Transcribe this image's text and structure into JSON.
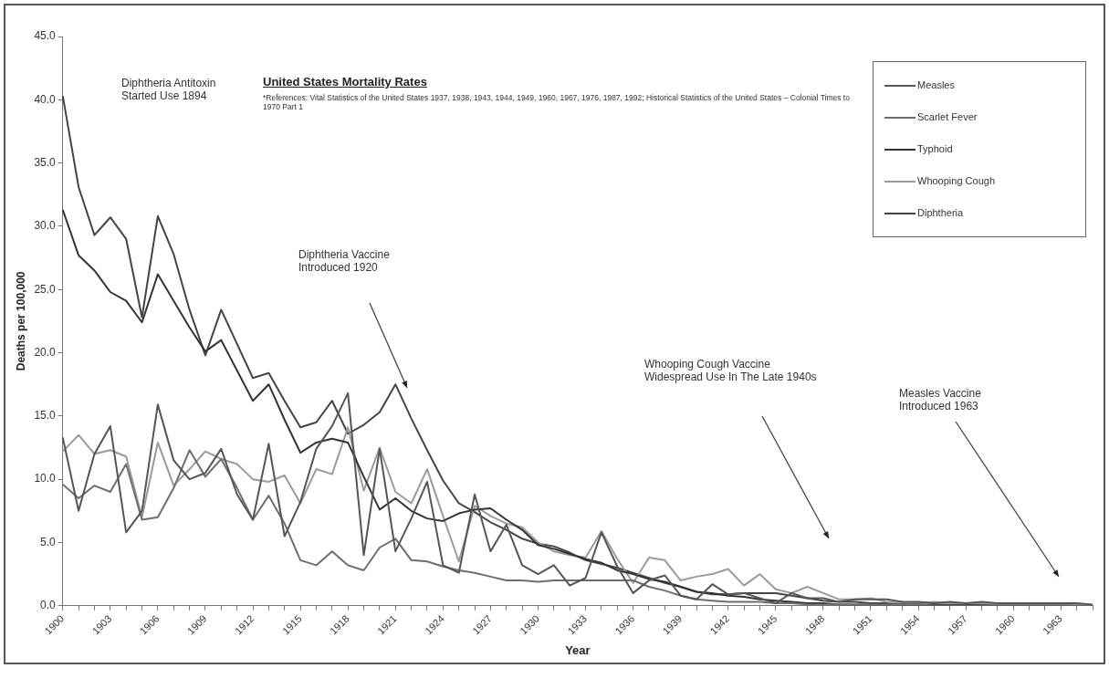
{
  "chart_data": {
    "type": "line",
    "title": "United States Mortality Rates",
    "annotations": [
      "*References: Vital Statistics of the United States 1937, 1938, 1943, 1944, 1949, 1960, 1967, 1976, 1987, 1992; Historical Statistics of the United States – Colonial Times to 1970 Part 1",
      "Diphtheria Antitoxin Started Use 1894",
      "Diphtheria Vaccine Introduced 1920",
      "Whooping Cough Vaccine Widespread Use In The Late 1940s",
      "Measles Vaccine Introduced 1963"
    ],
    "xlabel": "Year",
    "ylabel": "Deaths per 100,000",
    "categories": [
      "1900",
      null,
      null,
      "1903",
      null,
      null,
      "1906",
      null,
      null,
      "1909",
      null,
      null,
      "1912",
      null,
      null,
      "1915",
      null,
      null,
      "1918",
      null,
      null,
      "1921",
      null,
      null,
      "1924",
      null,
      null,
      "1927",
      null,
      null,
      "1930",
      null,
      null,
      "1933",
      null,
      null,
      "1936",
      null,
      null,
      "1939",
      null,
      null,
      "1942",
      null,
      null,
      "1945",
      null,
      null,
      "1948",
      null,
      null,
      "1951",
      null,
      null,
      "1954",
      null,
      null,
      "1957",
      null,
      null,
      "1960",
      null,
      null,
      "1963",
      null,
      null
    ],
    "ylim": [
      0,
      45
    ],
    "yticks": [
      {
        "value": 0,
        "label": "0.0"
      },
      {
        "value": 5,
        "label": "5.0"
      },
      {
        "value": 10,
        "label": "10.0"
      },
      {
        "value": 15,
        "label": "15.0"
      },
      {
        "value": 20,
        "label": "20.0"
      },
      {
        "value": 25,
        "label": "25.0"
      },
      {
        "value": 30,
        "label": "30.0"
      },
      {
        "value": 35,
        "label": "35.0"
      },
      {
        "value": 40,
        "label": "40.0"
      },
      {
        "value": 45,
        "label": "45.0"
      }
    ],
    "grid": false,
    "legend": "top right",
    "marker": "none",
    "line_style": "solid",
    "series": [
      {
        "name": "Measles",
        "color": "#555555",
        "values": [
          13.3,
          7.5,
          12.0,
          14.2,
          5.8,
          7.5,
          15.9,
          11.5,
          10.0,
          10.5,
          12.4,
          8.8,
          6.8,
          12.8,
          5.5,
          8.2,
          12.4,
          14.2,
          16.8,
          4.0,
          12.4,
          4.3,
          6.9,
          9.8,
          3.2,
          2.6,
          8.8,
          4.3,
          6.4,
          3.2,
          2.5,
          3.2,
          1.6,
          2.2,
          5.8,
          3.1,
          1.0,
          2.0,
          2.4,
          0.8,
          0.5,
          1.7,
          0.9,
          1.0,
          0.6,
          0.2,
          1.0,
          0.6,
          0.6,
          0.3,
          0.5,
          0.5,
          0.5,
          0.3,
          0.3,
          0.2,
          0.3,
          0.2,
          0.3,
          0.2,
          0.2,
          0.2,
          0.2,
          0.2,
          0.2,
          0.1
        ]
      },
      {
        "name": "Scarlet Fever",
        "color": "#6e6e6e",
        "values": [
          9.6,
          8.5,
          9.5,
          9.0,
          11.2,
          6.8,
          7.0,
          9.3,
          12.3,
          10.2,
          11.6,
          9.3,
          6.8,
          8.7,
          6.5,
          3.6,
          3.2,
          4.3,
          3.2,
          2.8,
          4.6,
          5.3,
          3.6,
          3.5,
          3.1,
          2.8,
          2.6,
          2.3,
          2.0,
          2.0,
          1.9,
          2.0,
          2.0,
          2.0,
          2.0,
          2.0,
          2.0,
          1.5,
          1.2,
          0.8,
          0.5,
          0.4,
          0.3,
          0.3,
          0.3,
          0.2,
          0.2,
          0.1,
          0.1,
          0.1,
          0.1,
          0.1,
          0.1,
          0.1,
          0.1,
          0.0,
          0.0,
          0.0,
          0.0,
          0.0,
          0.0,
          0.0,
          0.0,
          0.0,
          0.0,
          0.0
        ]
      },
      {
        "name": "Typhoid",
        "color": "#333333",
        "values": [
          31.3,
          27.7,
          26.5,
          24.8,
          24.1,
          22.4,
          26.2,
          24.1,
          22.0,
          20.1,
          21.0,
          18.6,
          16.2,
          17.5,
          14.7,
          12.1,
          12.9,
          13.2,
          12.9,
          10.2,
          7.6,
          8.5,
          7.5,
          6.9,
          6.7,
          7.3,
          7.6,
          7.7,
          6.8,
          6.0,
          4.8,
          4.5,
          4.1,
          3.7,
          3.4,
          2.8,
          2.5,
          2.1,
          1.9,
          1.5,
          1.1,
          1.0,
          0.8,
          0.7,
          0.5,
          0.4,
          0.3,
          0.2,
          0.2,
          0.1,
          0.1,
          0.1,
          0.1,
          0.1,
          0.1,
          0.0,
          0.0,
          0.0,
          0.0,
          0.0,
          0.0,
          0.0,
          0.0,
          0.0,
          0.0,
          0.0
        ]
      },
      {
        "name": "Whooping Cough",
        "color": "#9a9a9a",
        "values": [
          12.2,
          13.5,
          12.0,
          12.3,
          11.8,
          7.0,
          12.9,
          9.5,
          10.8,
          12.2,
          11.6,
          11.2,
          10.0,
          9.8,
          10.3,
          8.1,
          10.8,
          10.4,
          14.1,
          9.1,
          12.5,
          9.0,
          8.1,
          10.8,
          7.1,
          3.5,
          7.9,
          7.1,
          6.5,
          6.2,
          5.0,
          4.3,
          4.0,
          3.8,
          5.9,
          3.7,
          1.8,
          3.8,
          3.6,
          2.0,
          2.3,
          2.5,
          2.9,
          1.6,
          2.5,
          1.3,
          1.0,
          1.5,
          1.0,
          0.5,
          0.5,
          0.6,
          0.3,
          0.2,
          0.2,
          0.3,
          0.2,
          0.2,
          0.2,
          0.1,
          0.1,
          0.1,
          0.1,
          0.1,
          0.0,
          0.0
        ]
      },
      {
        "name": "Diphtheria",
        "color": "#444444",
        "values": [
          40.3,
          33.1,
          29.3,
          30.7,
          29.0,
          22.8,
          30.8,
          27.8,
          23.4,
          19.8,
          23.4,
          20.7,
          18.0,
          18.4,
          16.2,
          14.1,
          14.5,
          16.2,
          13.6,
          14.3,
          15.3,
          17.5,
          14.8,
          12.3,
          9.9,
          8.1,
          7.4,
          6.6,
          6.0,
          5.3,
          4.9,
          4.7,
          4.2,
          3.6,
          3.3,
          3.0,
          2.6,
          2.2,
          1.8,
          1.5,
          1.1,
          0.9,
          0.9,
          1.0,
          1.0,
          1.0,
          0.8,
          0.6,
          0.4,
          0.3,
          0.3,
          0.2,
          0.2,
          0.1,
          0.1,
          0.1,
          0.1,
          0.1,
          0.1,
          0.0,
          0.0,
          0.0,
          0.0,
          0.0,
          0.0,
          0.0
        ]
      }
    ]
  }
}
